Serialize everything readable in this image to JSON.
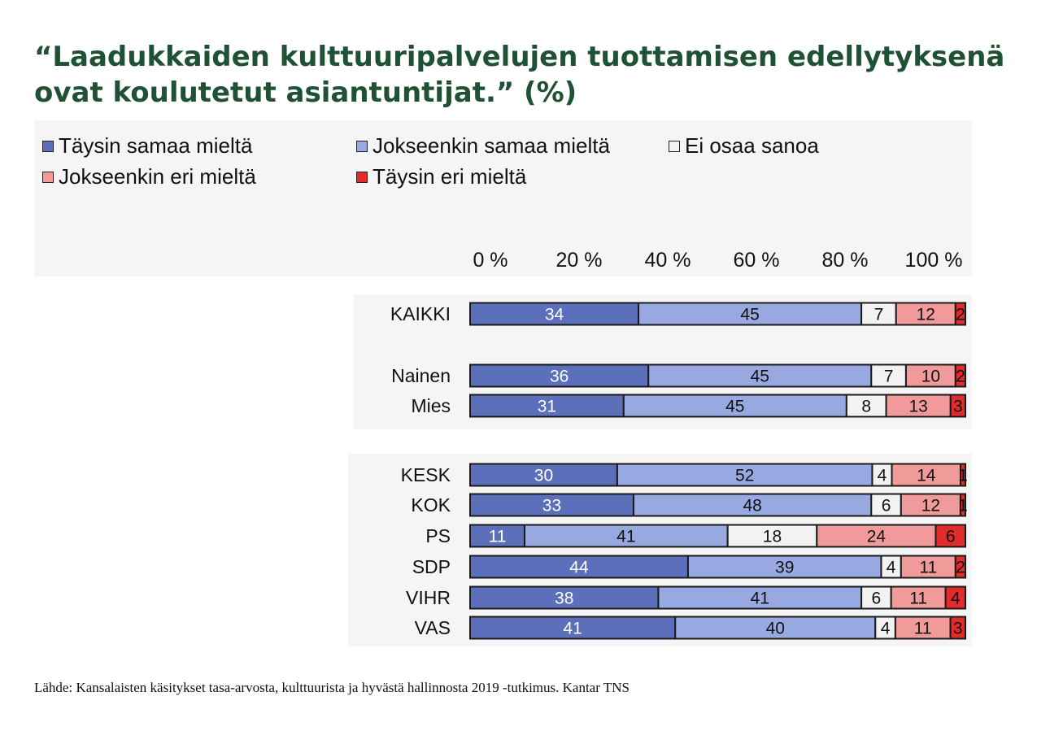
{
  "title": "“Laadukkaiden kulttuuripalvelujen tuottamisen edellytyksenä ovat koulutetut asiantuntijat.” (%)",
  "source": "Lähde: Kansalaisten käsitykset tasa-arvosta, kulttuurista ja hyvästä hallinnosta 2019 -tutkimus. Kantar TNS",
  "chart_data": {
    "type": "bar",
    "orientation": "horizontal",
    "stacked": true,
    "xlim": [
      0,
      100
    ],
    "tick_labels": [
      "0 %",
      "20 %",
      "40 %",
      "60 %",
      "80 %",
      "100 %"
    ],
    "tick_values": [
      0,
      20,
      40,
      60,
      80,
      100
    ],
    "legend_position": "top",
    "categories": [
      "KAIKKI",
      "Nainen",
      "Mies",
      "KESK",
      "KOK",
      "PS",
      "SDP",
      "VIHR",
      "VAS"
    ],
    "groups": [
      [
        0
      ],
      [
        1,
        2
      ],
      [
        3,
        4,
        5,
        6,
        7,
        8
      ]
    ],
    "series": [
      {
        "name": "Täysin samaa mieltä",
        "color": "#5b6fba",
        "label_color": "#ffffff",
        "values": [
          34,
          36,
          31,
          30,
          33,
          11,
          44,
          38,
          41
        ]
      },
      {
        "name": "Jokseenkin samaa mieltä",
        "color": "#97a9e0",
        "label_color": "#111111",
        "values": [
          45,
          45,
          45,
          52,
          48,
          41,
          39,
          41,
          40
        ]
      },
      {
        "name": "Ei osaa sanoa",
        "color": "#f2f2f2",
        "label_color": "#111111",
        "values": [
          7,
          7,
          8,
          4,
          6,
          18,
          4,
          6,
          4
        ]
      },
      {
        "name": "Jokseenkin eri mieltä",
        "color": "#f19a9a",
        "label_color": "#111111",
        "values": [
          12,
          10,
          13,
          14,
          12,
          24,
          11,
          11,
          11
        ]
      },
      {
        "name": "Täysin eri mieltä",
        "color": "#e32b2b",
        "label_color": "#111111",
        "values": [
          2,
          2,
          3,
          1,
          1,
          6,
          2,
          4,
          3
        ]
      }
    ]
  }
}
